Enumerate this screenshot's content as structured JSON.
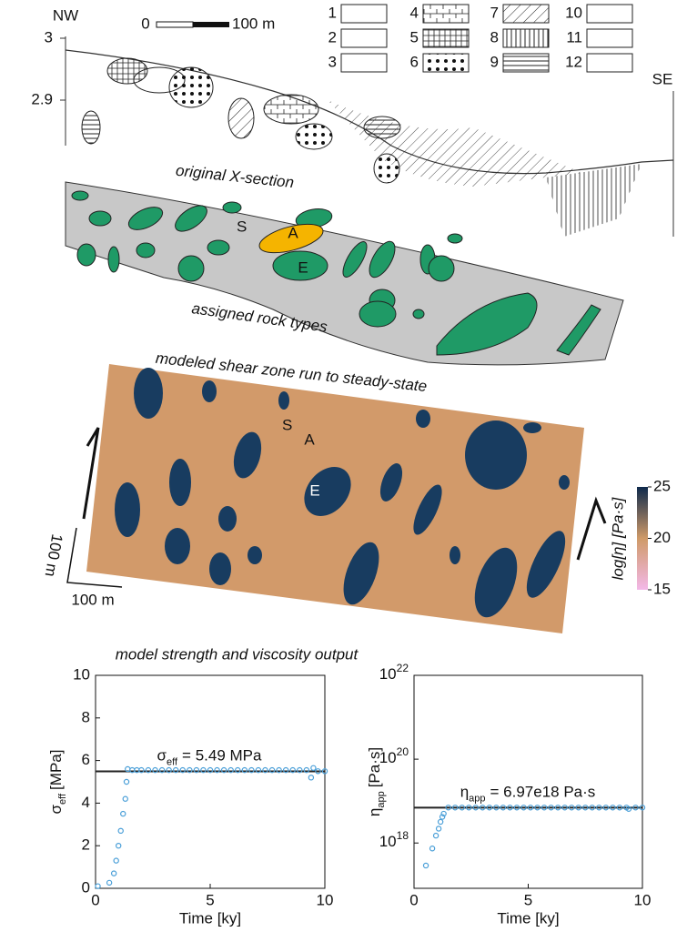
{
  "figure": {
    "cross_section": {
      "nw": "NW",
      "se": "SE",
      "elevation_ticks": [
        3,
        2.9
      ],
      "scale_start": "0",
      "scale_end": "100 m",
      "caption": "original X-section"
    },
    "legend": [
      "1",
      "2",
      "3",
      "4",
      "5",
      "6",
      "7",
      "8",
      "9",
      "10",
      "11",
      "12"
    ],
    "rock_types": {
      "caption": "assigned rock types",
      "labels": [
        "S",
        "A",
        "E"
      ]
    },
    "shear_zone": {
      "caption": "modeled shear zone run to steady-state",
      "labels": [
        "S",
        "A",
        "E"
      ],
      "scale_vertical": "100 m",
      "scale_horizontal": "100 m"
    },
    "colorbar": {
      "label": "log[η] [Pa·s]",
      "lim": [
        15,
        25
      ],
      "ticks": [
        25,
        20,
        15
      ],
      "colors": [
        "#f3b8e8",
        "#cf9a68",
        "#0f2a4c"
      ]
    },
    "output_title": "model strength and viscosity output"
  },
  "chart_data": [
    {
      "type": "scatter",
      "xlabel": "Time [ky]",
      "ylabel": {
        "symbol": "σ",
        "subscript": "eff",
        "unit": "[MPa]"
      },
      "annotation": {
        "symbol": "σ",
        "subscript": "eff",
        "text": "= 5.49 MPa"
      },
      "reference_line": 5.49,
      "reference_color": "#222222",
      "color": "#4a9fd8",
      "xlim": [
        0,
        10
      ],
      "xticks": [
        0,
        5,
        10
      ],
      "ylim": [
        0,
        10
      ],
      "yticks": [
        0,
        2,
        4,
        6,
        8,
        10
      ],
      "log_y": false,
      "x": [
        0.1,
        0.6,
        0.8,
        0.9,
        1.0,
        1.1,
        1.2,
        1.3,
        1.35,
        1.4,
        1.6,
        1.8,
        2.0,
        2.3,
        2.6,
        2.9,
        3.2,
        3.5,
        3.8,
        4.1,
        4.4,
        4.7,
        5.0,
        5.3,
        5.6,
        5.9,
        6.2,
        6.5,
        6.8,
        7.1,
        7.4,
        7.7,
        8.0,
        8.3,
        8.6,
        8.9,
        9.2,
        9.4,
        9.5,
        9.7,
        10.0
      ],
      "values": [
        0.1,
        0.26,
        0.7,
        1.3,
        2.0,
        2.7,
        3.5,
        4.2,
        5.0,
        5.6,
        5.55,
        5.55,
        5.55,
        5.55,
        5.55,
        5.55,
        5.55,
        5.55,
        5.55,
        5.55,
        5.55,
        5.55,
        5.55,
        5.55,
        5.55,
        5.55,
        5.55,
        5.55,
        5.55,
        5.55,
        5.55,
        5.55,
        5.55,
        5.55,
        5.55,
        5.55,
        5.55,
        5.2,
        5.65,
        5.5,
        5.5
      ]
    },
    {
      "type": "scatter",
      "xlabel": "Time [ky]",
      "ylabel": {
        "symbol": "η",
        "subscript": "app",
        "unit": "[Pa·s]"
      },
      "annotation": {
        "symbol": "η",
        "subscript": "app",
        "text": "= 6.97e18 Pa·s"
      },
      "reference_line": 6.97e+18,
      "reference_color": "#222222",
      "color": "#4a9fd8",
      "xlim": [
        0,
        10
      ],
      "xticks": [
        0,
        5,
        10
      ],
      "ylim": [
        8.3e+16,
        1e+22
      ],
      "log_y": true,
      "yticks": [
        {
          "value": 1e+18,
          "label": "10",
          "exponent": "18"
        },
        {
          "value": 1e+20,
          "label": "10",
          "exponent": "20"
        },
        {
          "value": 1e+22,
          "label": "10",
          "exponent": "22"
        }
      ],
      "x": [
        0.52,
        0.8,
        0.96,
        1.08,
        1.16,
        1.24,
        1.3,
        1.5,
        1.8,
        2.1,
        2.4,
        2.7,
        3.0,
        3.3,
        3.6,
        3.9,
        4.2,
        4.5,
        4.8,
        5.1,
        5.4,
        5.7,
        6.0,
        6.3,
        6.6,
        6.9,
        7.2,
        7.5,
        7.8,
        8.1,
        8.4,
        8.7,
        9.0,
        9.3,
        9.4,
        9.7,
        10.0
      ],
      "values": [
        2.9e+17,
        7.4e+17,
        1.5e+18,
        2.2e+18,
        3.2e+18,
        4.2e+18,
        5e+18,
        7e+18,
        7e+18,
        7e+18,
        7e+18,
        7e+18,
        7e+18,
        7e+18,
        7e+18,
        7e+18,
        7e+18,
        7e+18,
        7e+18,
        7e+18,
        7e+18,
        7e+18,
        7e+18,
        7e+18,
        7e+18,
        7e+18,
        7e+18,
        7e+18,
        7e+18,
        7e+18,
        7e+18,
        7e+18,
        7e+18,
        7e+18,
        6.5e+18,
        7e+18,
        7e+18
      ]
    }
  ]
}
